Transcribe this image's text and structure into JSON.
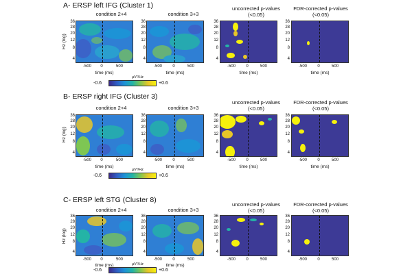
{
  "panels": [
    {
      "id": "A",
      "title": "A- ERSP left IFG (Cluster 1)"
    },
    {
      "id": "B",
      "title": "B- ERSP right IFG (Cluster 3)"
    },
    {
      "id": "C",
      "title": "C- ERSP left STG (Cluster 8)"
    }
  ],
  "columns": {
    "cond1": "condition 2+4",
    "cond2": "condition 3+3",
    "uncorr_line1": "uncorrected p-values",
    "uncorr_line2": "(<0.05)",
    "fdr_line1": "FDR-corrected p-values",
    "fdr_line2": "(<0.05)"
  },
  "axes": {
    "y_label": "Hz (log)",
    "y_ticks": [
      "36",
      "28",
      "20",
      "12",
      "8",
      "4"
    ],
    "x_label": "time (ms)",
    "x_ticks": [
      "-500",
      "0",
      "500"
    ]
  },
  "colorbar": {
    "min": "-0.6",
    "max": "+0.6",
    "unit": "μV²/Hz"
  },
  "colors": {
    "low": "#3b2a8a",
    "mid": "#1d93d6",
    "high": "#f6f10c",
    "bg_sig": "#3d3a96"
  }
}
